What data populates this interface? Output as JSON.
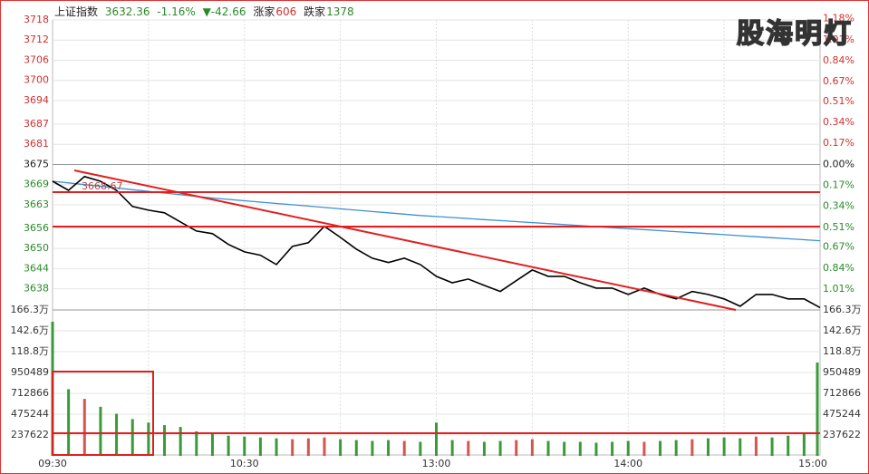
{
  "header": {
    "name": "上证指数",
    "price": "3632.36",
    "change_pct": "-1.16%",
    "change": "▼-42.66",
    "up_label": "涨家",
    "up_count": "606",
    "down_label": "跌家",
    "down_count": "1378",
    "watermark": "股海明灯"
  },
  "chart_data": [
    {
      "type": "line",
      "categories": [
        "09:30",
        null,
        null,
        null,
        null,
        null,
        null,
        null,
        null,
        null,
        null,
        null,
        "10:30",
        null,
        null,
        null,
        null,
        null,
        null,
        null,
        null,
        null,
        null,
        null,
        "13:00",
        null,
        null,
        null,
        null,
        null,
        null,
        null,
        null,
        null,
        null,
        null,
        "14:00",
        null,
        null,
        null,
        null,
        null,
        null,
        null,
        null,
        null,
        null,
        null,
        "15:00"
      ],
      "series": [
        {
          "name": "price",
          "color": "#000000",
          "values": [
            3670,
            3667.3,
            3671.4,
            3670,
            3667.3,
            3662.5,
            3661.4,
            3660.6,
            3657.9,
            3655.2,
            3654.4,
            3651.2,
            3649,
            3648,
            3645.2,
            3650.6,
            3651.7,
            3656.6,
            3653.3,
            3649.8,
            3647.1,
            3645.8,
            3647.1,
            3645.2,
            3641.7,
            3639.8,
            3640.9,
            3639,
            3637.2,
            3640.4,
            3643.6,
            3641.7,
            3641.7,
            3639.8,
            3638.2,
            3638.2,
            3636.3,
            3638.2,
            3636.3,
            3635,
            3637.2,
            3636.3,
            3635,
            3632.8,
            3636.3,
            3636.3,
            3635,
            3635,
            3632.4
          ]
        },
        {
          "name": "average",
          "color": "#3d8fd1",
          "values": [
            3670,
            3669.5,
            3669,
            3668.5,
            3668,
            3667.5,
            3667,
            3666.5,
            3666,
            3665.5,
            3665,
            3664.6,
            3664.2,
            3663.8,
            3663.4,
            3663,
            3662.6,
            3662.2,
            3661.8,
            3661.4,
            3661,
            3660.6,
            3660.2,
            3659.8,
            3659.5,
            3659.2,
            3658.9,
            3658.6,
            3658.3,
            3658,
            3657.7,
            3657.4,
            3657.1,
            3656.8,
            3656.5,
            3656.2,
            3655.9,
            3655.6,
            3655.3,
            3655,
            3654.7,
            3654.4,
            3654.1,
            3653.8,
            3653.5,
            3653.2,
            3652.9,
            3652.6,
            3652.3
          ]
        }
      ],
      "ylim": [
        3631.7,
        3718
      ],
      "yticks": [
        3718,
        3712,
        3706,
        3700,
        3694,
        3687,
        3681,
        3675,
        3669,
        3663,
        3656,
        3650,
        3644,
        3638
      ],
      "y2lim": [
        -1.179,
        1.17
      ],
      "y2ticks": [
        {
          "value": 1.18,
          "label": "1.18%"
        },
        {
          "value": 1.01,
          "label": "1.01%"
        },
        {
          "value": 0.84,
          "label": "0.84%"
        },
        {
          "value": 0.67,
          "label": "0.67%"
        },
        {
          "value": 0.51,
          "label": "0.51%"
        },
        {
          "value": 0.34,
          "label": "0.34%"
        },
        {
          "value": 0.17,
          "label": "0.17%"
        },
        {
          "value": 0,
          "label": "0.00%"
        },
        {
          "value": -0.17,
          "label": "0.17%"
        },
        {
          "value": -0.34,
          "label": "0.34%"
        },
        {
          "value": -0.51,
          "label": "0.51%"
        },
        {
          "value": -0.67,
          "label": "0.67%"
        },
        {
          "value": -0.84,
          "label": "0.84%"
        },
        {
          "value": -1.01,
          "label": "1.01%"
        }
      ],
      "annotation": "3668.67",
      "grid": true
    },
    {
      "type": "bar",
      "values": [
        1529000,
        760000,
        650000,
        560000,
        480000,
        420000,
        380000,
        350000,
        330000,
        280000,
        250000,
        230000,
        220000,
        210000,
        200000,
        190000,
        200000,
        210000,
        190000,
        180000,
        170000,
        180000,
        170000,
        160000,
        380000,
        180000,
        170000,
        160000,
        170000,
        180000,
        190000,
        170000,
        160000,
        160000,
        150000,
        160000,
        170000,
        160000,
        170000,
        180000,
        190000,
        200000,
        210000,
        200000,
        220000,
        210000,
        230000,
        260000,
        1064000
      ],
      "up_color": "#d9534f",
      "down_color": "#3a9a3a",
      "ylim": [
        0,
        1663354
      ],
      "yticks": [
        {
          "value": 1663354,
          "label": "166.3万"
        },
        {
          "value": 1425732,
          "label": "142.6万"
        },
        {
          "value": 1188110,
          "label": "118.8万"
        },
        950489,
        712866,
        475244,
        237622
      ],
      "grid": true
    }
  ]
}
